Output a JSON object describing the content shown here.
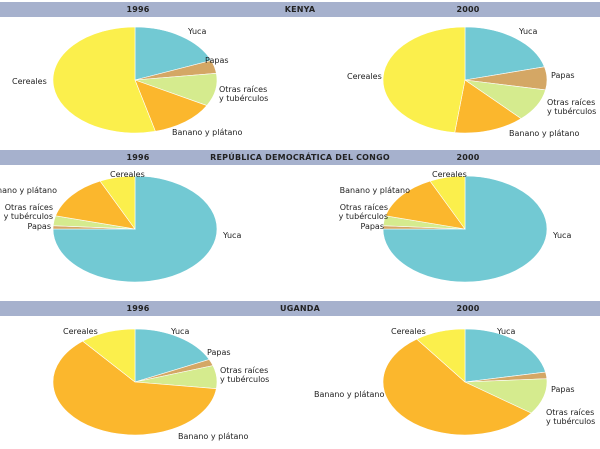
{
  "colors": {
    "band": "#a6b1cd",
    "Yuca": "#72c9d3",
    "Papas": "#d4a765",
    "Otras raíces y tubérculos": "#d5eb8e",
    "Banano y plátano": "#fbb72d",
    "Cereales": "#fbef4c"
  },
  "sections": [
    {
      "country": "KENYA",
      "year1": "1996",
      "year2": "2000"
    },
    {
      "country": "REPÚBLICA DEMOCRÁTICA DEL CONGO",
      "year1": "1996",
      "year2": "2000"
    },
    {
      "country": "UGANDA",
      "year1": "1996",
      "year2": "2000"
    }
  ],
  "chart_data": [
    {
      "type": "pie",
      "title": "KENYA 1996",
      "unit": "%",
      "slices": [
        {
          "label": "Yuca",
          "value": 19
        },
        {
          "label": "Papas",
          "value": 4
        },
        {
          "label": "Otras raíces y tubérculos",
          "value": 10
        },
        {
          "label": "Banano y plátano",
          "value": 13
        },
        {
          "label": "Cereales",
          "value": 54
        }
      ]
    },
    {
      "type": "pie",
      "title": "KENYA 2000",
      "unit": "%",
      "slices": [
        {
          "label": "Yuca",
          "value": 21
        },
        {
          "label": "Papas",
          "value": 7
        },
        {
          "label": "Otras raíces y tubérculos",
          "value": 10
        },
        {
          "label": "Banano y plátano",
          "value": 14
        },
        {
          "label": "Cereales",
          "value": 48
        }
      ]
    },
    {
      "type": "pie",
      "title": "REPÚBLICA DEMOCRÁTICA DEL CONGO 1996",
      "unit": "%",
      "slices": [
        {
          "label": "Yuca",
          "value": 75
        },
        {
          "label": "Papas",
          "value": 1
        },
        {
          "label": "Otras raíces y tubérculos",
          "value": 3
        },
        {
          "label": "Banano y plátano",
          "value": 14
        },
        {
          "label": "Cereales",
          "value": 7
        }
      ]
    },
    {
      "type": "pie",
      "title": "REPÚBLICA DEMOCRÁTICA DEL CONGO 2000",
      "unit": "%",
      "slices": [
        {
          "label": "Yuca",
          "value": 75
        },
        {
          "label": "Papas",
          "value": 1
        },
        {
          "label": "Otras raíces y tubérculos",
          "value": 3
        },
        {
          "label": "Banano y plátano",
          "value": 14
        },
        {
          "label": "Cereales",
          "value": 7
        }
      ]
    },
    {
      "type": "pie",
      "title": "UGANDA 1996",
      "unit": "%",
      "slices": [
        {
          "label": "Yuca",
          "value": 18
        },
        {
          "label": "Papas",
          "value": 2
        },
        {
          "label": "Otras raíces y tubérculos",
          "value": 7
        },
        {
          "label": "Banano y plátano",
          "value": 62
        },
        {
          "label": "Cereales",
          "value": 11
        }
      ]
    },
    {
      "type": "pie",
      "title": "UGANDA 2000",
      "unit": "%",
      "slices": [
        {
          "label": "Yuca",
          "value": 22
        },
        {
          "label": "Papas",
          "value": 2
        },
        {
          "label": "Otras raíces y tubérculos",
          "value": 11
        },
        {
          "label": "Banano y plátano",
          "value": 55
        },
        {
          "label": "Cereales",
          "value": 10
        }
      ]
    }
  ],
  "slice_labels": [
    {
      "label": "Yuca"
    },
    {
      "label": "Papas"
    },
    {
      "label": "Otras raíces",
      "label2": "y tubérculos"
    },
    {
      "label": "Banano y plátano"
    },
    {
      "label": "Cereales"
    }
  ]
}
